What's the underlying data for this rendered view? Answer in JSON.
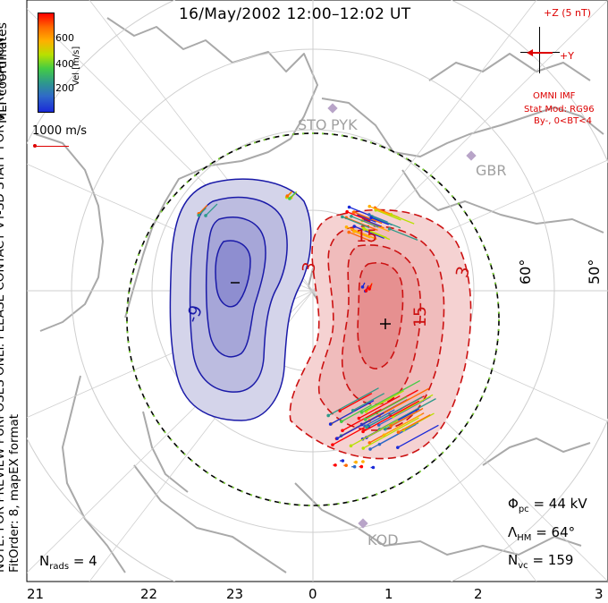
{
  "title": "16/May/2002 12:00–12:02 UT",
  "coordinates": "MLT coordinates",
  "colorbar": {
    "label": "Vel [m/s]",
    "ticks": [
      "600",
      "400",
      "200"
    ],
    "colors": [
      "#ff0000",
      "#ff6a00",
      "#ffb000",
      "#b8e000",
      "#44cc44",
      "#2e9a8a",
      "#2f6ac8",
      "#1a2ad8"
    ]
  },
  "scale_vector": "1000 m/s",
  "disclaimer": "NOTE: FOR PREVIEW PURPOSES ONLY. PLEASE CONTACT VT-SD STAFF FOR VERIFICATION.",
  "fit_order": "FitOrder: 8, mapEX format",
  "imf": {
    "z_label": "+Z (5 nT)",
    "y_label": "+Y",
    "source": "OMNI IMF",
    "stat_model": "Stat Mod: RG96",
    "condition": "By-, 0<BT<4"
  },
  "stations": [
    "STO",
    "PYK",
    "GBR",
    "KOD"
  ],
  "lat_labels": [
    "60°",
    "50°"
  ],
  "contour_labels": [
    "-9",
    "3",
    "15",
    "15",
    "3"
  ],
  "min_marker": "–",
  "max_marker": "+",
  "stats": {
    "phi_symbol": "Φ",
    "phi_sub": "pc",
    "phi_value": "= 44 kV",
    "lambda_symbol": "Λ",
    "lambda_sub": "HM",
    "lambda_value": "= 64°",
    "nvc_symbol": "N",
    "nvc_sub": "vc",
    "nvc_value": "= 159",
    "nrads_symbol": "N",
    "nrads_sub": "rads",
    "nrads_value": "= 4"
  },
  "mlt_labels": [
    "21",
    "22",
    "23",
    "0",
    "1",
    "2",
    "3"
  ],
  "colors": {
    "negative_cell": "#1a1aa8",
    "positive_cell": "#cc1111",
    "map_outline": "#a9a9a9",
    "grid": "#cfcfcf",
    "boundary": "#000000",
    "imf_arrow": "#dd0000"
  }
}
